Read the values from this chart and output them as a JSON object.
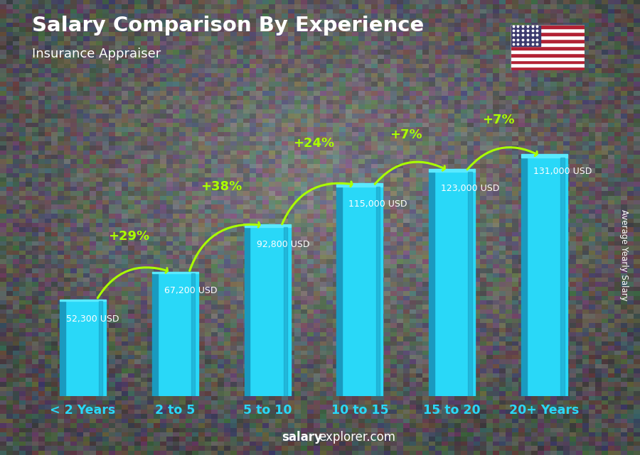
{
  "title": "Salary Comparison By Experience",
  "subtitle": "Insurance Appraiser",
  "categories": [
    "< 2 Years",
    "2 to 5",
    "5 to 10",
    "10 to 15",
    "15 to 20",
    "20+ Years"
  ],
  "values": [
    52300,
    67200,
    92800,
    115000,
    123000,
    131000
  ],
  "value_labels": [
    "52,300 USD",
    "67,200 USD",
    "92,800 USD",
    "115,000 USD",
    "123,000 USD",
    "131,000 USD"
  ],
  "pct_labels": [
    "+29%",
    "+38%",
    "+24%",
    "+7%",
    "+7%"
  ],
  "bar_color_face": "#29d8f8",
  "bar_color_side": "#1a9abf",
  "bar_color_top": "#5aeaff",
  "background_color": "#3a3a3a",
  "overlay_alpha": 0.55,
  "title_color": "#ffffff",
  "subtitle_color": "#ffffff",
  "xticklabel_color": "#29d8f8",
  "value_label_color": "#ffffff",
  "pct_color": "#aaff00",
  "arrow_color": "#aaff00",
  "footer_salary_color": "#ffffff",
  "footer_explorer_color": "#ffffff",
  "ylabel_text": "Average Yearly Salary",
  "footer_bold": "salary",
  "footer_normal": "explorer.com",
  "ylim_max": 155000,
  "bar_width": 0.5
}
